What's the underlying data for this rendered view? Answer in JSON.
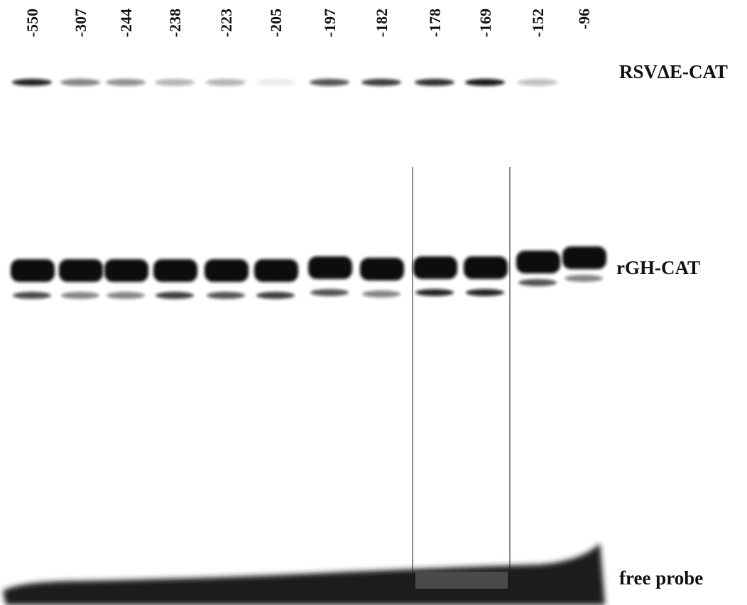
{
  "lanes": {
    "labels": [
      "-550",
      "-307",
      "-244",
      "-238",
      "-223",
      "-205",
      "-197",
      "-182",
      "-178",
      "-169",
      "-152",
      "-96"
    ]
  },
  "bands": {
    "top": "RSVΔE-CAT",
    "middle": "rGH-CAT",
    "bottom": "free probe"
  }
}
